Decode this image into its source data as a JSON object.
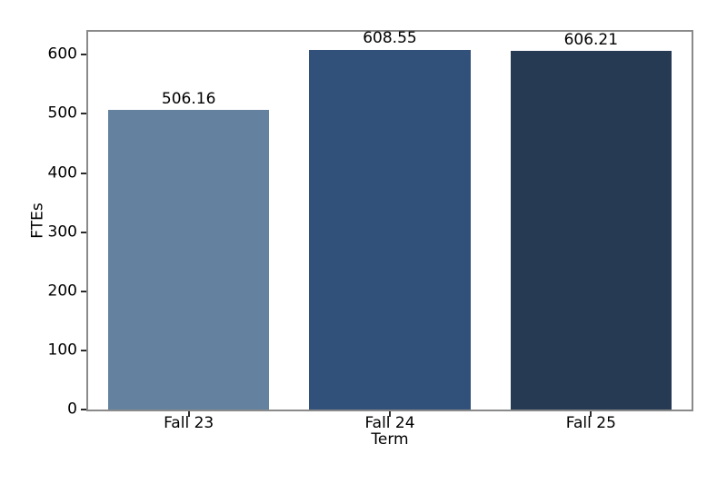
{
  "chart_data": {
    "type": "bar",
    "title": "",
    "categories": [
      "Fall 23",
      "Fall 24",
      "Fall 25"
    ],
    "values": [
      506.16,
      608.55,
      606.21
    ],
    "value_labels": [
      "506.16",
      "608.55",
      "606.21"
    ],
    "bar_colors": [
      "#64829F",
      "#32517A",
      "#263A54"
    ],
    "xlabel": "Term",
    "ylabel": "FTEs",
    "yticks": [
      0,
      100,
      200,
      300,
      400,
      500,
      600
    ],
    "ylim": [
      0,
      639
    ],
    "grid": false,
    "legend": null,
    "bar_width_fraction": 0.8,
    "spine_color": "#8a8a8a",
    "tick_color": "#2b2b2b",
    "text_color": "#000000",
    "background_color": "#ffffff"
  }
}
